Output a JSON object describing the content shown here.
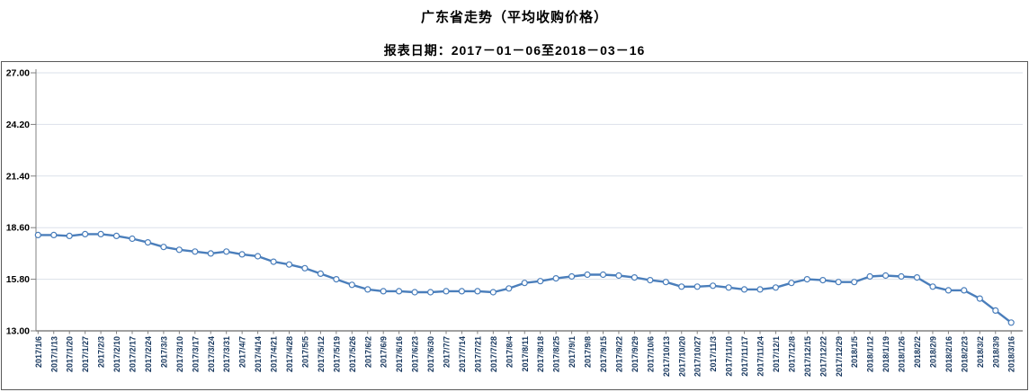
{
  "header": {
    "title": "广东省走势（平均收购价格）",
    "subtitle": "报表日期：2017－01－06至2018－03－16"
  },
  "chart_data": {
    "type": "line",
    "title": "广东省走势（平均收购价格）",
    "subtitle": "报表日期：2017－01－06至2018－03－16",
    "xlabel": "",
    "ylabel": "",
    "ylim": [
      13.0,
      27.0
    ],
    "ytick_interval": 2.8,
    "yticks": [
      "27.00",
      "24.20",
      "21.40",
      "18.60",
      "15.80",
      "13.00"
    ],
    "grid": true,
    "legend_position": "none",
    "marker": "open-circle",
    "categories": [
      "2017/1/6",
      "2017/1/13",
      "2017/1/20",
      "2017/1/27",
      "2017/2/3",
      "2017/2/10",
      "2017/2/17",
      "2017/2/24",
      "2017/3/3",
      "2017/3/10",
      "2017/3/17",
      "2017/3/24",
      "2017/3/31",
      "2017/4/7",
      "2017/4/14",
      "2017/4/21",
      "2017/4/28",
      "2017/5/5",
      "2017/5/12",
      "2017/5/19",
      "2017/5/26",
      "2017/6/2",
      "2017/6/9",
      "2017/6/16",
      "2017/6/23",
      "2017/6/30",
      "2017/7/7",
      "2017/7/14",
      "2017/7/21",
      "2017/7/28",
      "2017/8/4",
      "2017/8/11",
      "2017/8/18",
      "2017/8/25",
      "2017/9/1",
      "2017/9/8",
      "2017/9/15",
      "2017/9/22",
      "2017/9/29",
      "2017/10/6",
      "2017/10/13",
      "2017/10/20",
      "2017/10/27",
      "2017/11/3",
      "2017/11/10",
      "2017/11/17",
      "2017/11/24",
      "2017/12/1",
      "2017/12/8",
      "2017/12/15",
      "2017/12/22",
      "2017/12/29",
      "2018/1/5",
      "2018/1/12",
      "2018/1/19",
      "2018/1/26",
      "2018/2/2",
      "2018/2/9",
      "2018/2/16",
      "2018/2/23",
      "2018/3/2",
      "2018/3/9",
      "2018/3/16"
    ],
    "series": [
      {
        "name": "平均收购价格",
        "color": "#4a7ebb",
        "values": [
          18.2,
          18.2,
          18.15,
          18.25,
          18.25,
          18.15,
          18.0,
          17.8,
          17.55,
          17.4,
          17.3,
          17.2,
          17.3,
          17.15,
          17.05,
          16.75,
          16.6,
          16.4,
          16.1,
          15.8,
          15.5,
          15.25,
          15.15,
          15.15,
          15.1,
          15.1,
          15.15,
          15.15,
          15.15,
          15.1,
          15.3,
          15.6,
          15.7,
          15.85,
          15.95,
          16.05,
          16.05,
          16.0,
          15.9,
          15.75,
          15.65,
          15.4,
          15.4,
          15.45,
          15.35,
          15.25,
          15.25,
          15.35,
          15.6,
          15.8,
          15.75,
          15.65,
          15.65,
          15.95,
          16.0,
          15.95,
          15.9,
          15.4,
          15.2,
          15.2,
          14.75,
          14.1,
          13.45
        ]
      }
    ]
  },
  "colors": {
    "series_line": "#4a7ebb",
    "marker_fill": "#ffffff",
    "gridline": "#dbe1ea",
    "axis_line": "#808080",
    "panel_border": "#595959",
    "y_label": "#000000",
    "x_label": "#17375e",
    "background": "#ffffff"
  }
}
